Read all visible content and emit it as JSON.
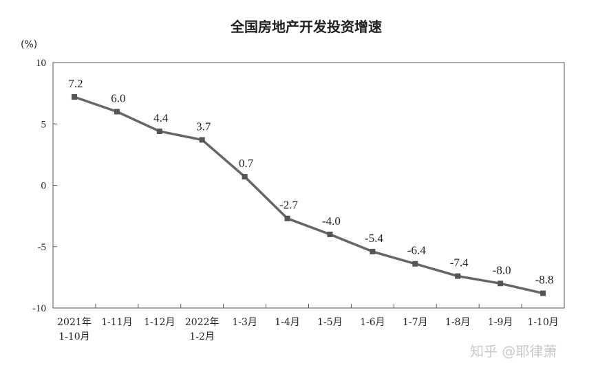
{
  "chart_data": {
    "type": "line",
    "title": "全国房地产开发投资增速",
    "ylabel": "(%)",
    "xlabel": "",
    "ylim": [
      -10,
      10
    ],
    "yticks": [
      10,
      5,
      0,
      -5,
      -10
    ],
    "categories": [
      [
        "2021年",
        "1-10月"
      ],
      [
        "1-11月"
      ],
      [
        "1-12月"
      ],
      [
        "2022年",
        "1-2月"
      ],
      [
        "1-3月"
      ],
      [
        "1-4月"
      ],
      [
        "1-5月"
      ],
      [
        "1-6月"
      ],
      [
        "1-7月"
      ],
      [
        "1-8月"
      ],
      [
        "1-9月"
      ],
      [
        "1-10月"
      ]
    ],
    "values": [
      7.2,
      6.0,
      4.4,
      3.7,
      0.7,
      -2.7,
      -4.0,
      -5.4,
      -6.4,
      -7.4,
      -8.0,
      -8.8
    ],
    "value_labels": [
      "7.2",
      "6.0",
      "4.4",
      "3.7",
      "0.7",
      "-2.7",
      "-4.0",
      "-5.4",
      "-6.4",
      "-7.4",
      "-8.0",
      "-8.8"
    ],
    "line_color": "#666666",
    "grid": false
  },
  "watermark": "知乎 @耶律萧"
}
